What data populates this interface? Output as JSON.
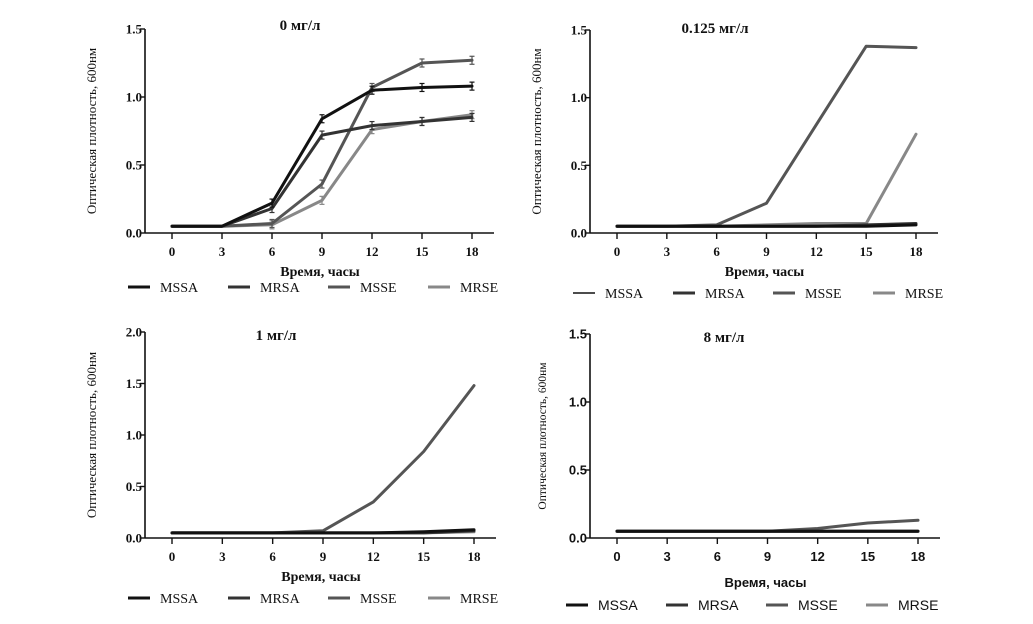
{
  "chart_data": [
    {
      "type": "line",
      "title": "0 мг/л",
      "xlabel": "Время, часы",
      "ylabel": "Оптическая плотность, 600нм",
      "x": [
        0,
        3,
        6,
        9,
        12,
        15,
        18
      ],
      "xticks": [
        "0",
        "3",
        "6",
        "9",
        "12",
        "15",
        "18"
      ],
      "ylim": [
        0,
        1.5
      ],
      "yticks": [
        "0.0",
        "0.5",
        "1.0",
        "1.5"
      ],
      "series": [
        {
          "name": "MSSA",
          "color": "#111111",
          "values": [
            0.05,
            0.05,
            0.22,
            0.84,
            1.05,
            1.07,
            1.08
          ]
        },
        {
          "name": "MRSA",
          "color": "#333333",
          "values": [
            0.05,
            0.05,
            0.18,
            0.72,
            0.79,
            0.82,
            0.85
          ]
        },
        {
          "name": "MSSE",
          "color": "#555555",
          "values": [
            0.05,
            0.05,
            0.07,
            0.36,
            1.07,
            1.25,
            1.27
          ]
        },
        {
          "name": "MRSE",
          "color": "#888888",
          "values": [
            0.05,
            0.05,
            0.06,
            0.24,
            0.76,
            0.82,
            0.87
          ]
        }
      ]
    },
    {
      "type": "line",
      "title": "0.125 мг/л",
      "xlabel": "Время, часы",
      "ylabel": "Оптическая плотность, 600нм",
      "x": [
        0,
        3,
        6,
        9,
        12,
        15,
        18
      ],
      "xticks": [
        "0",
        "3",
        "6",
        "9",
        "12",
        "15",
        "18"
      ],
      "ylim": [
        0,
        1.5
      ],
      "yticks": [
        "0.0",
        "0.5",
        "1.0",
        "1.5"
      ],
      "series": [
        {
          "name": "MSSA",
          "color": "#111111",
          "values": [
            0.05,
            0.05,
            0.05,
            0.05,
            0.05,
            0.05,
            0.06
          ]
        },
        {
          "name": "MRSA",
          "color": "#333333",
          "values": [
            0.05,
            0.05,
            0.05,
            0.05,
            0.05,
            0.06,
            0.07
          ]
        },
        {
          "name": "MSSE",
          "color": "#555555",
          "values": [
            0.05,
            0.05,
            0.06,
            0.22,
            0.8,
            1.38,
            1.37
          ]
        },
        {
          "name": "MRSE",
          "color": "#888888",
          "values": [
            0.05,
            0.05,
            0.05,
            0.06,
            0.07,
            0.07,
            0.73
          ]
        }
      ]
    },
    {
      "type": "line",
      "title": "1 мг/л",
      "xlabel": "Время, часы",
      "ylabel": "Оптическая плотность, 600нм",
      "x": [
        0,
        3,
        6,
        9,
        12,
        15,
        18
      ],
      "xticks": [
        "0",
        "3",
        "6",
        "9",
        "12",
        "15",
        "18"
      ],
      "ylim": [
        0,
        2.0
      ],
      "yticks": [
        "0.0",
        "0.5",
        "1.0",
        "1.5",
        "2.0"
      ],
      "series": [
        {
          "name": "MSSA",
          "color": "#111111",
          "values": [
            0.05,
            0.05,
            0.05,
            0.05,
            0.05,
            0.06,
            0.08
          ]
        },
        {
          "name": "MRSA",
          "color": "#333333",
          "values": [
            0.05,
            0.05,
            0.05,
            0.05,
            0.05,
            0.05,
            0.07
          ]
        },
        {
          "name": "MSSE",
          "color": "#555555",
          "values": [
            0.05,
            0.05,
            0.05,
            0.07,
            0.35,
            0.84,
            1.48
          ]
        },
        {
          "name": "MRSE",
          "color": "#888888",
          "values": [
            0.05,
            0.05,
            0.05,
            0.05,
            0.05,
            0.05,
            0.06
          ]
        }
      ]
    },
    {
      "type": "line",
      "title": "8 мг/л",
      "xlabel": "Время, часы",
      "ylabel": "Оптическая плотность, 600нм",
      "x": [
        0,
        3,
        6,
        9,
        12,
        15,
        18
      ],
      "xticks": [
        "0",
        "3",
        "6",
        "9",
        "12",
        "15",
        "18"
      ],
      "ylim": [
        0,
        1.5
      ],
      "yticks": [
        "0.0",
        "0.5",
        "1.0",
        "1.5"
      ],
      "series": [
        {
          "name": "MSSA",
          "color": "#111111",
          "values": [
            0.05,
            0.05,
            0.05,
            0.05,
            0.05,
            0.05,
            0.05
          ]
        },
        {
          "name": "MRSA",
          "color": "#333333",
          "values": [
            0.05,
            0.05,
            0.05,
            0.05,
            0.05,
            0.05,
            0.05
          ]
        },
        {
          "name": "MSSE",
          "color": "#555555",
          "values": [
            0.05,
            0.05,
            0.05,
            0.05,
            0.07,
            0.11,
            0.13
          ]
        },
        {
          "name": "MRSE",
          "color": "#888888",
          "values": [
            0.05,
            0.05,
            0.05,
            0.05,
            0.05,
            0.05,
            0.05
          ]
        }
      ]
    }
  ]
}
